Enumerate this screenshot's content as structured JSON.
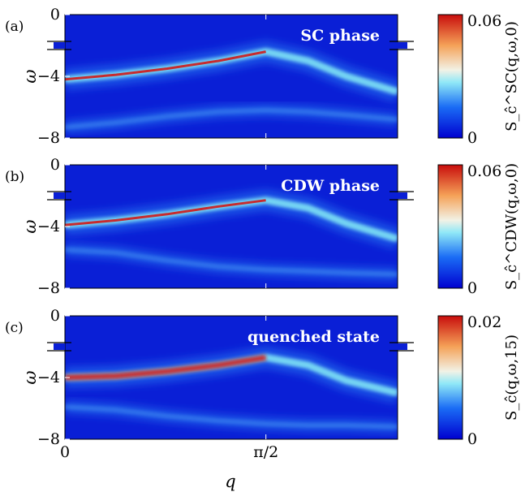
{
  "chart_data": [
    {
      "type": "heatmap",
      "panel_label": "(a)",
      "annotation": "SC phase",
      "ylabel": "ω",
      "yticks": [
        "0",
        "−4",
        "−8"
      ],
      "ylim": [
        -8,
        0
      ],
      "xlim": [
        0,
        2.6
      ],
      "colorbar": {
        "label": "S_ĉ^SC(q,ω,0)",
        "max_label": "0.06",
        "min_label": "0",
        "range": [
          0,
          0.06
        ]
      },
      "branches": [
        {
          "name": "upper",
          "x": [
            0,
            0.4,
            0.8,
            1.2,
            1.57,
            1.9,
            2.2,
            2.6
          ],
          "y": [
            -4.2,
            -3.9,
            -3.5,
            -3.0,
            -2.4,
            -3.0,
            -4.0,
            -5.0
          ]
        },
        {
          "name": "lower",
          "x": [
            0,
            0.4,
            0.8,
            1.2,
            1.57,
            1.9,
            2.2,
            2.6
          ],
          "y": [
            -7.3,
            -7.0,
            -6.6,
            -6.3,
            -6.2,
            -6.3,
            -6.5,
            -6.8
          ]
        }
      ],
      "peak_value": 0.06
    },
    {
      "type": "heatmap",
      "panel_label": "(b)",
      "annotation": "CDW phase",
      "ylabel": "ω",
      "yticks": [
        "0",
        "−4",
        "−8"
      ],
      "ylim": [
        -8,
        0
      ],
      "xlim": [
        0,
        2.6
      ],
      "colorbar": {
        "label": "S_ĉ^CDW(q,ω,0)",
        "max_label": "0.06",
        "min_label": "0",
        "range": [
          0,
          0.06
        ]
      },
      "branches": [
        {
          "name": "upper",
          "x": [
            0,
            0.4,
            0.8,
            1.2,
            1.57,
            1.9,
            2.2,
            2.6
          ],
          "y": [
            -3.9,
            -3.6,
            -3.2,
            -2.7,
            -2.3,
            -2.8,
            -3.8,
            -4.8
          ]
        },
        {
          "name": "lower",
          "x": [
            0,
            0.4,
            0.8,
            1.2,
            1.57,
            1.9,
            2.2,
            2.6
          ],
          "y": [
            -5.5,
            -5.7,
            -6.2,
            -6.6,
            -6.8,
            -6.9,
            -7.0,
            -7.1
          ]
        }
      ],
      "peak_value": 0.06
    },
    {
      "type": "heatmap",
      "panel_label": "(c)",
      "annotation": "quenched state",
      "ylabel": "ω",
      "xlabel": "q",
      "yticks": [
        "0",
        "−4",
        "−8"
      ],
      "xticks": [
        "0",
        "π/2"
      ],
      "ylim": [
        -8,
        0
      ],
      "xlim": [
        0,
        2.6
      ],
      "colorbar": {
        "label": "S_ĉ(q,ω,15)",
        "max_label": "0.02",
        "min_label": "0",
        "range": [
          0,
          0.02
        ]
      },
      "branches": [
        {
          "name": "upper",
          "x": [
            0,
            0.4,
            0.8,
            1.2,
            1.57,
            1.9,
            2.2,
            2.6
          ],
          "y": [
            -4.0,
            -3.9,
            -3.6,
            -3.2,
            -2.7,
            -3.2,
            -4.2,
            -5.0
          ]
        },
        {
          "name": "lower",
          "x": [
            0,
            0.4,
            0.8,
            1.2,
            1.57,
            1.9,
            2.2,
            2.6
          ],
          "y": [
            -5.9,
            -6.1,
            -6.5,
            -6.8,
            -7.0,
            -7.1,
            -7.1,
            -7.2
          ]
        }
      ],
      "peak_value": 0.02
    }
  ],
  "colors": {
    "low": "#0a1fd6",
    "mid": "#7fe3f5",
    "high": "#d01818"
  }
}
